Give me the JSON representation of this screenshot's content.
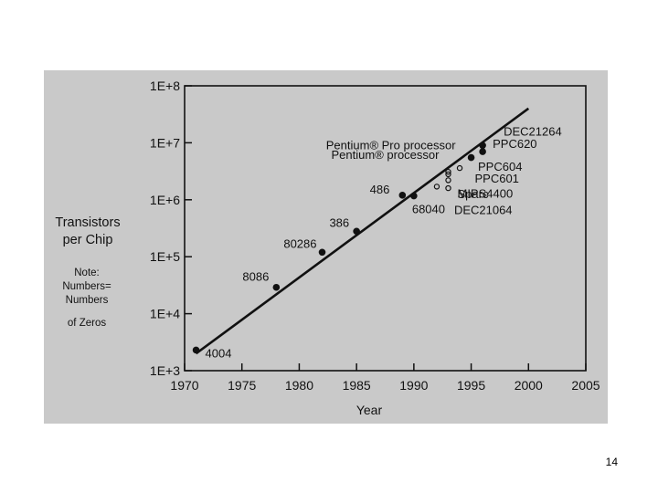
{
  "slide": {
    "page_number": "14"
  },
  "chart_data": {
    "type": "scatter",
    "title": "",
    "ylabel": "Transistors per Chip",
    "xlabel": "Year",
    "y_scale": "log",
    "xlim": [
      1970,
      2005
    ],
    "ylim": [
      1000,
      100000000
    ],
    "x_ticks": [
      "1970",
      "1975",
      "1980",
      "1985",
      "1990",
      "1995",
      "2000",
      "2005"
    ],
    "y_ticks": [
      "1E+3",
      "1E+4",
      "1E+5",
      "1E+6",
      "1E+7",
      "1E+8"
    ],
    "note": [
      "Note:",
      "Numbers=",
      "Numbers",
      "of Zeros"
    ],
    "trend_line": {
      "start": {
        "x": 1971,
        "y": 2000
      },
      "end": {
        "x": 2000,
        "y": 40000000
      }
    },
    "points": [
      {
        "label": "4004",
        "x": 1971,
        "y": 2300,
        "marker": "filled"
      },
      {
        "label": "8086",
        "x": 1978,
        "y": 29000,
        "marker": "filled"
      },
      {
        "label": "80286",
        "x": 1982,
        "y": 120000,
        "marker": "filled"
      },
      {
        "label": "386",
        "x": 1985,
        "y": 280000,
        "marker": "filled"
      },
      {
        "label": "486",
        "x": 1989,
        "y": 1200000,
        "marker": "filled"
      },
      {
        "label": "68040",
        "x": 1990,
        "y": 1170000,
        "marker": "filled"
      },
      {
        "label": "Pentium® processor",
        "x": 1993,
        "y": 3100000,
        "marker": "open"
      },
      {
        "label": "Sparc",
        "x": 1993,
        "y": 1600000,
        "marker": "open"
      },
      {
        "label": "MIPS4400",
        "x": 1993,
        "y": 2200000,
        "marker": "open"
      },
      {
        "label": "DEC21064",
        "x": 1992,
        "y": 1700000,
        "marker": "open"
      },
      {
        "label": "Pentium® Pro processor",
        "x": 1995,
        "y": 5500000,
        "marker": "filled"
      },
      {
        "label": "PPC601",
        "x": 1993,
        "y": 2800000,
        "marker": "open"
      },
      {
        "label": "PPC604",
        "x": 1994,
        "y": 3600000,
        "marker": "open"
      },
      {
        "label": "PPC620",
        "x": 1996,
        "y": 7000000,
        "marker": "filled"
      },
      {
        "label": "DEC21264",
        "x": 1996,
        "y": 9000000,
        "marker": "filled"
      }
    ]
  }
}
